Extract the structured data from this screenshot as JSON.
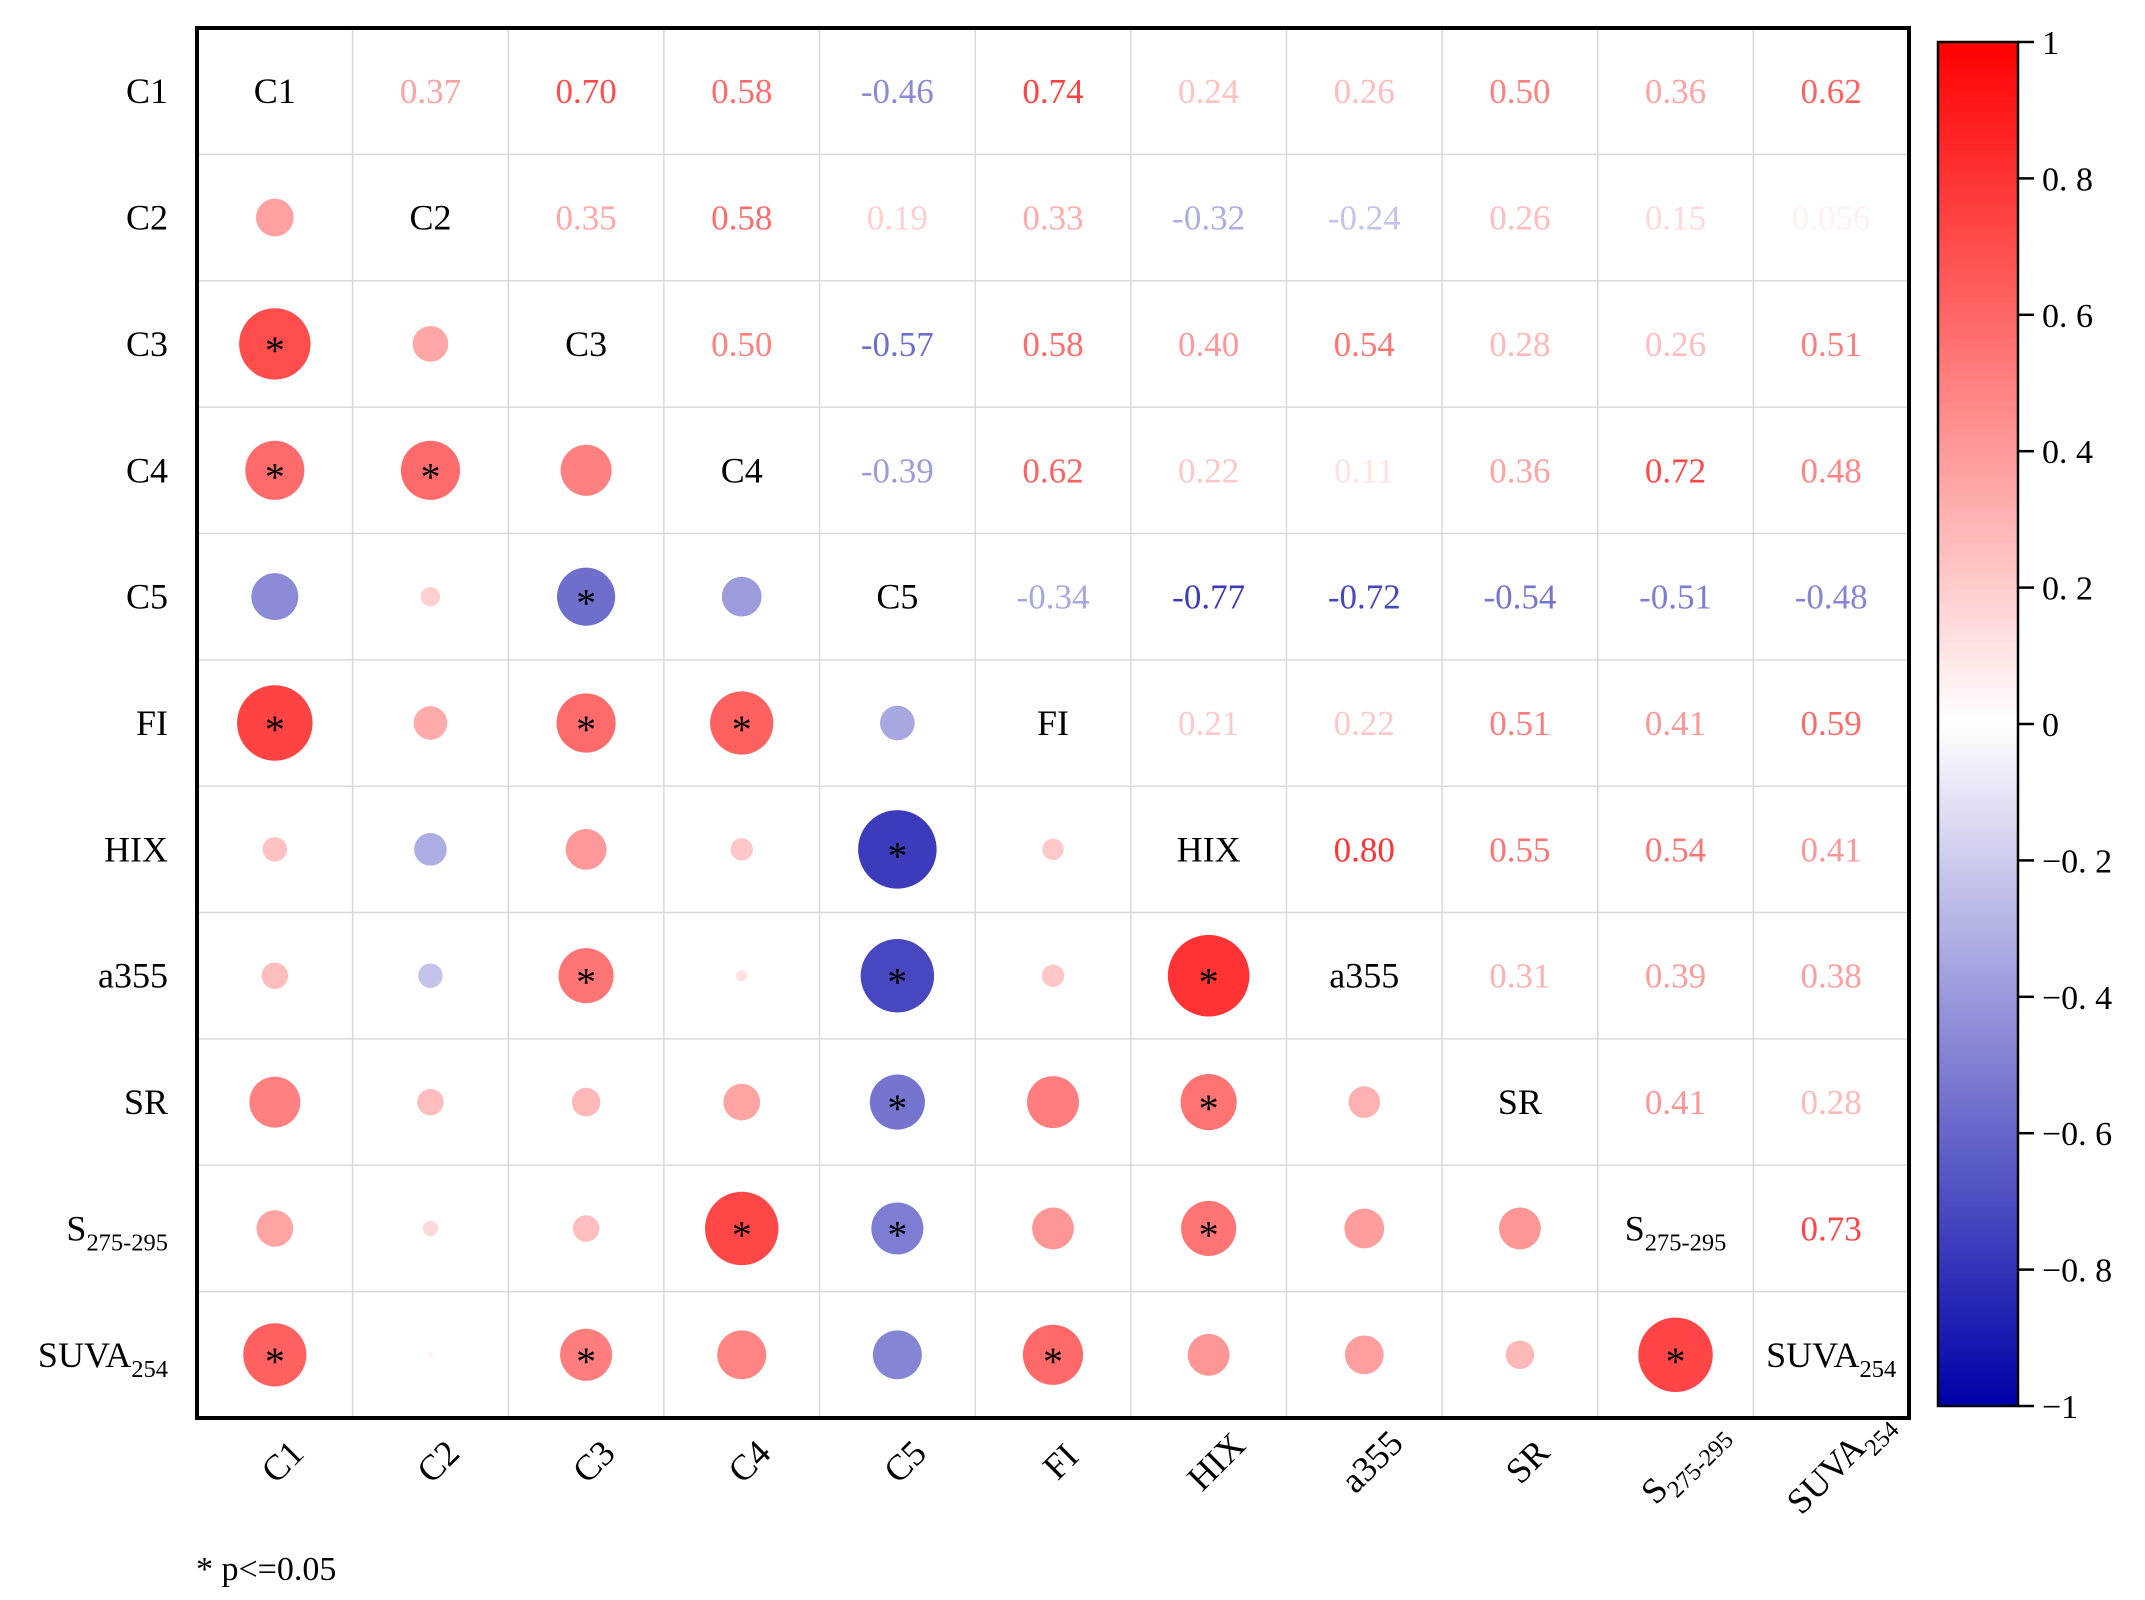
{
  "chart_data": {
    "type": "heatmap",
    "subtype": "correlation-matrix",
    "variables": [
      {
        "base": "C1",
        "sub": ""
      },
      {
        "base": "C2",
        "sub": ""
      },
      {
        "base": "C3",
        "sub": ""
      },
      {
        "base": "C4",
        "sub": ""
      },
      {
        "base": "C5",
        "sub": ""
      },
      {
        "base": "FI",
        "sub": ""
      },
      {
        "base": "HIX",
        "sub": ""
      },
      {
        "base": "a355",
        "sub": ""
      },
      {
        "base": "SR",
        "sub": ""
      },
      {
        "base": "S",
        "sub": "275-295"
      },
      {
        "base": "SUVA",
        "sub": "254"
      }
    ],
    "upper_labels": [
      [
        null,
        "0.37",
        "0.70",
        "0.58",
        "-0.46",
        "0.74",
        "0.24",
        "0.26",
        "0.50",
        "0.36",
        "0.62"
      ],
      [
        null,
        null,
        "0.35",
        "0.58",
        "0.19",
        "0.33",
        "-0.32",
        "-0.24",
        "0.26",
        "0.15",
        "0.056"
      ],
      [
        null,
        null,
        null,
        "0.50",
        "-0.57",
        "0.58",
        "0.40",
        "0.54",
        "0.28",
        "0.26",
        "0.51"
      ],
      [
        null,
        null,
        null,
        null,
        "-0.39",
        "0.62",
        "0.22",
        "0.11",
        "0.36",
        "0.72",
        "0.48"
      ],
      [
        null,
        null,
        null,
        null,
        null,
        "-0.34",
        "-0.77",
        "-0.72",
        "-0.54",
        "-0.51",
        "-0.48"
      ],
      [
        null,
        null,
        null,
        null,
        null,
        null,
        "0.21",
        "0.22",
        "0.51",
        "0.41",
        "0.59"
      ],
      [
        null,
        null,
        null,
        null,
        null,
        null,
        null,
        "0.80",
        "0.55",
        "0.54",
        "0.41"
      ],
      [
        null,
        null,
        null,
        null,
        null,
        null,
        null,
        null,
        "0.31",
        "0.39",
        "0.38"
      ],
      [
        null,
        null,
        null,
        null,
        null,
        null,
        null,
        null,
        null,
        "0.41",
        "0.28"
      ],
      [
        null,
        null,
        null,
        null,
        null,
        null,
        null,
        null,
        null,
        null,
        "0.73"
      ],
      [
        null,
        null,
        null,
        null,
        null,
        null,
        null,
        null,
        null,
        null,
        null
      ]
    ],
    "significant_pairs": [
      [
        2,
        0
      ],
      [
        3,
        0
      ],
      [
        3,
        1
      ],
      [
        4,
        2
      ],
      [
        5,
        0
      ],
      [
        5,
        2
      ],
      [
        5,
        3
      ],
      [
        6,
        4
      ],
      [
        7,
        2
      ],
      [
        7,
        4
      ],
      [
        7,
        6
      ],
      [
        8,
        4
      ],
      [
        8,
        6
      ],
      [
        9,
        3
      ],
      [
        9,
        4
      ],
      [
        9,
        6
      ],
      [
        10,
        0
      ],
      [
        10,
        2
      ],
      [
        10,
        5
      ],
      [
        10,
        9
      ]
    ],
    "significance_marker": "*",
    "colorbar": {
      "range": [
        -1,
        1
      ],
      "ticks": [
        1,
        0.8,
        0.6,
        0.4,
        0.2,
        0,
        -0.2,
        -0.4,
        -0.6,
        -0.8,
        -1
      ],
      "tick_labels": [
        "1",
        "0. 8",
        "0. 6",
        "0. 4",
        "0. 2",
        "0",
        "−0. 2",
        "−0. 4",
        "−0. 6",
        "−0. 8",
        "−1"
      ],
      "colors": {
        "positive": "#ff0000",
        "zero": "#ffffff",
        "negative": "#0000a8"
      }
    },
    "note": "* p<=0.05",
    "legend_placement": "right"
  }
}
